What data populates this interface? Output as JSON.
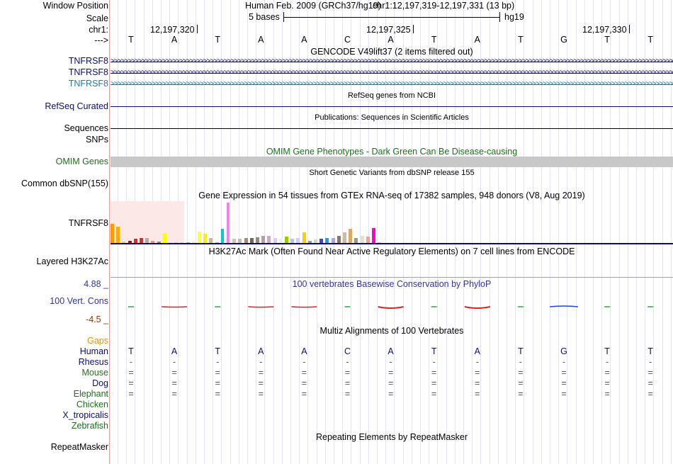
{
  "header": {
    "window_position_label": "Window Position",
    "assembly_text": "Human Feb. 2009 (GRCh37/hg19)",
    "position_text": "chr1:12,197,319-12,197,331 (13 bp)",
    "scale_label": "Scale",
    "scale_value": "5 bases",
    "scale_db": "hg19",
    "chrom_label": "chr1:",
    "coord_1": "12,197,320",
    "coord_2": "12,197,325",
    "coord_3": "12,197,330",
    "strand_label": "--->"
  },
  "bases": [
    "T",
    "A",
    "T",
    "A",
    "A",
    "C",
    "A",
    "T",
    "A",
    "T",
    "G",
    "T",
    "T"
  ],
  "gencode": {
    "title": "GENCODE V49lift37 (2 items filtered out)",
    "genes": [
      {
        "label": "TNFRSF8",
        "color": "#0c0c78"
      },
      {
        "label": "TNFRSF8",
        "color": "#0c0c78"
      },
      {
        "label": "TNFRSF8",
        "color": "#1e7aa8"
      }
    ]
  },
  "refseq": {
    "title": "RefSeq genes from NCBI",
    "label": "RefSeq Curated"
  },
  "publications": {
    "title": "Publications: Sequences in Scientific Articles",
    "label": "Sequences"
  },
  "snps": {
    "label": "SNPs"
  },
  "omim": {
    "title": "OMIM Gene Phenotypes - Dark Green Can Be Disease-causing",
    "label": "OMIM Genes",
    "color": "#1e6e1e"
  },
  "dbsnp": {
    "title": "Short Genetic Variants from dbSNP release 155",
    "label": "Common dbSNP(155)"
  },
  "gtex": {
    "title": "Gene Expression in 54 tissues from GTEx RNA-seq of 17382 samples, 948 donors (V8, Aug 2019)",
    "label": "TNFRSF8",
    "bar_colors": [
      "#ff9900",
      "#ffaa00",
      "#ddccaa",
      "#aa1122",
      "#ee2222",
      "#cc3333",
      "#bbaa99",
      "#dd9988",
      "#888888",
      "#ffff00",
      "#ddddff",
      "#ccccee",
      "#ddccdd",
      "#aaaaaa",
      "#eeeedd",
      "#ffff33",
      "#ffee00",
      "#ccbb88",
      "#aaaaff",
      "#00cccc",
      "#ee82ee",
      "#ddbbbb",
      "#bbbbbb",
      "#aa8877",
      "#776655",
      "#998877",
      "#bb99aa",
      "#ccaacc",
      "#ddccee",
      "#eeeeee",
      "#99cc00",
      "#bbbbff",
      "#ccccff",
      "#ffcc00",
      "#999999",
      "#ccddcc",
      "#4444dd",
      "#2299ee",
      "#aaaacc",
      "#887766",
      "#ccbbaa",
      "#ddaa66",
      "#999988",
      "#eeddcc",
      "#ff9999",
      "#ff00cc",
      "#cccccc"
    ],
    "values": [
      9.5,
      8,
      0.6,
      1.2,
      2.1,
      2.5,
      2.6,
      1.2,
      0.8,
      4.8,
      0.3,
      0.3,
      0.3,
      0.3,
      0.6,
      5.8,
      4.5,
      2.6,
      0.3,
      7.1,
      20.2,
      2.1,
      2.1,
      2.6,
      2.6,
      3,
      3.6,
      3.6,
      2.6,
      2.1,
      3.1,
      2.1,
      2.6,
      5.2,
      1.2,
      1.6,
      2.1,
      2.6,
      2.6,
      3.6,
      5.2,
      7.2,
      2.6,
      3.6,
      3.1,
      7.4,
      0.3
    ]
  },
  "h3k27ac": {
    "title": "H3K27Ac Mark (Often Found Near Active Regulatory Elements) on 7 cell lines from ENCODE",
    "label": "Layered H3K27Ac"
  },
  "phylop": {
    "title": "100 vertebrates Basewise Conservation by PhyloP",
    "label": "100 Vert. Cons",
    "max_label": "4.88 _",
    "min_label": "-4.5 _",
    "title_color": "#333399",
    "max_color": "#333399",
    "min_color": "#993300",
    "scores": [
      0.3,
      -0.5,
      0.3,
      -0.6,
      -0.6,
      0.2,
      -1.8,
      0.2,
      -1.8,
      0.3,
      0.4,
      0.3,
      0.3
    ]
  },
  "multiz": {
    "title": "Multiz Alignments of 100 Vertebrates",
    "gaps_label": "Gaps",
    "gaps_color": "#e0920a",
    "species": [
      {
        "name": "Human",
        "color": "#0c0c78",
        "row": [
          "T",
          "A",
          "T",
          "A",
          "A",
          "C",
          "A",
          "T",
          "A",
          "T",
          "G",
          "T",
          "T"
        ]
      },
      {
        "name": "Rhesus",
        "color": "#0c0c78",
        "row": [
          "-",
          "-",
          "-",
          "-",
          "-",
          "-",
          "-",
          "-",
          "-",
          "-",
          "-",
          "-",
          "-"
        ]
      },
      {
        "name": "Mouse",
        "color": "#1e6e1e",
        "row": [
          "=",
          "=",
          "=",
          "=",
          "=",
          "=",
          "=",
          "=",
          "=",
          "=",
          "=",
          "=",
          "="
        ]
      },
      {
        "name": "Dog",
        "color": "#0c0c78",
        "row": [
          "=",
          "=",
          "=",
          "=",
          "=",
          "=",
          "=",
          "=",
          "=",
          "=",
          "=",
          "=",
          "="
        ]
      },
      {
        "name": "Elephant",
        "color": "#1e6e1e",
        "row": [
          "=",
          "=",
          "=",
          "=",
          "=",
          "=",
          "=",
          "=",
          "=",
          "=",
          "=",
          "=",
          "="
        ]
      },
      {
        "name": "Chicken",
        "color": "#1e6e1e",
        "row": []
      },
      {
        "name": "X_tropicalis",
        "color": "#0c0c78",
        "row": []
      },
      {
        "name": "Zebrafish",
        "color": "#1e6e1e",
        "row": []
      }
    ]
  },
  "repeatmasker": {
    "title": "Repeating Elements by RepeatMasker",
    "label": "RepeatMasker"
  }
}
